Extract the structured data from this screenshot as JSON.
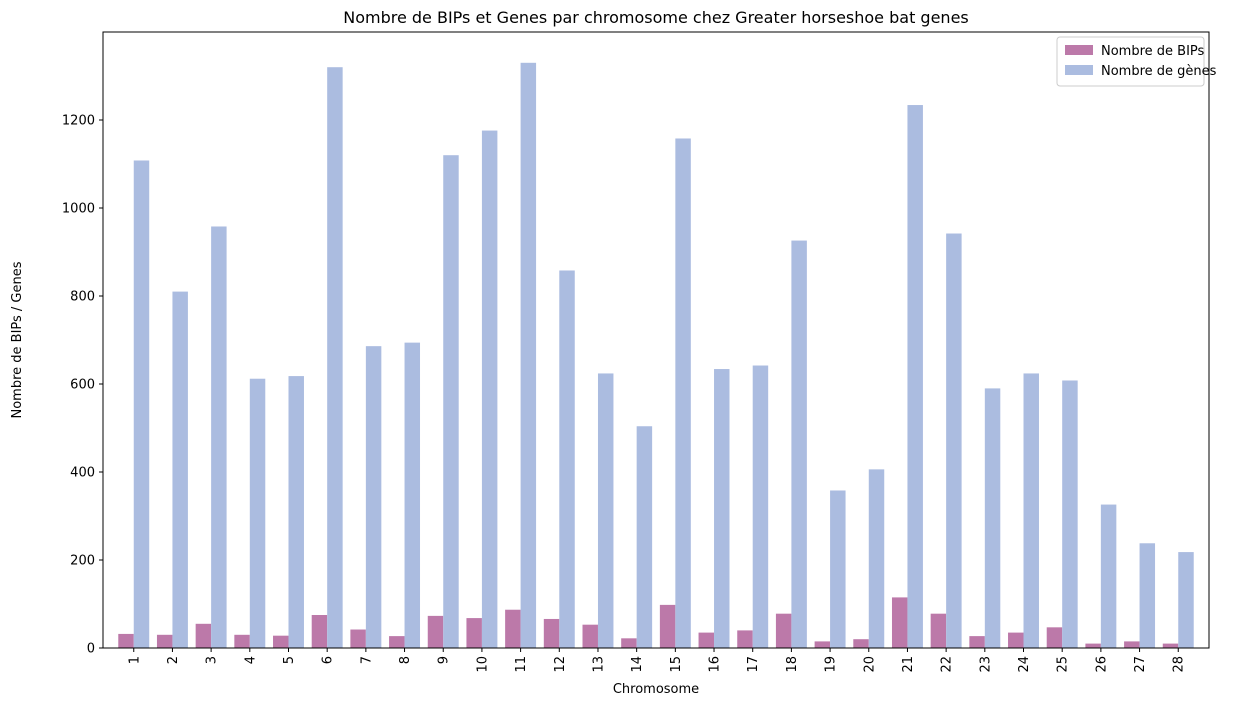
{
  "chart_data": {
    "type": "bar",
    "title": "Nombre de BIPs et Genes par chromosome chez Greater horseshoe bat genes",
    "xlabel": "Chromosome",
    "ylabel": "Nombre de BIPs / Genes",
    "ylim": [
      0,
      1400
    ],
    "yticks": [
      0,
      200,
      400,
      600,
      800,
      1000,
      1200
    ],
    "categories": [
      "1",
      "2",
      "3",
      "4",
      "5",
      "6",
      "7",
      "8",
      "9",
      "10",
      "11",
      "12",
      "13",
      "14",
      "15",
      "16",
      "17",
      "18",
      "19",
      "20",
      "21",
      "22",
      "23",
      "24",
      "25",
      "26",
      "27",
      "28"
    ],
    "series": [
      {
        "name": "Nombre de BIPs",
        "color": "#bc79a9",
        "values": [
          32,
          30,
          55,
          30,
          28,
          75,
          42,
          27,
          73,
          68,
          87,
          66,
          53,
          22,
          98,
          35,
          40,
          78,
          15,
          20,
          115,
          78,
          27,
          35,
          47,
          10,
          15,
          10
        ]
      },
      {
        "name": "Nombre de gènes",
        "color": "#abbce0",
        "values": [
          1108,
          810,
          958,
          612,
          618,
          1320,
          686,
          694,
          1120,
          1176,
          1330,
          858,
          624,
          504,
          1158,
          634,
          642,
          926,
          358,
          406,
          1234,
          942,
          590,
          624,
          608,
          326,
          238,
          218
        ]
      }
    ],
    "legend_position": "top-right",
    "grid": false
  }
}
